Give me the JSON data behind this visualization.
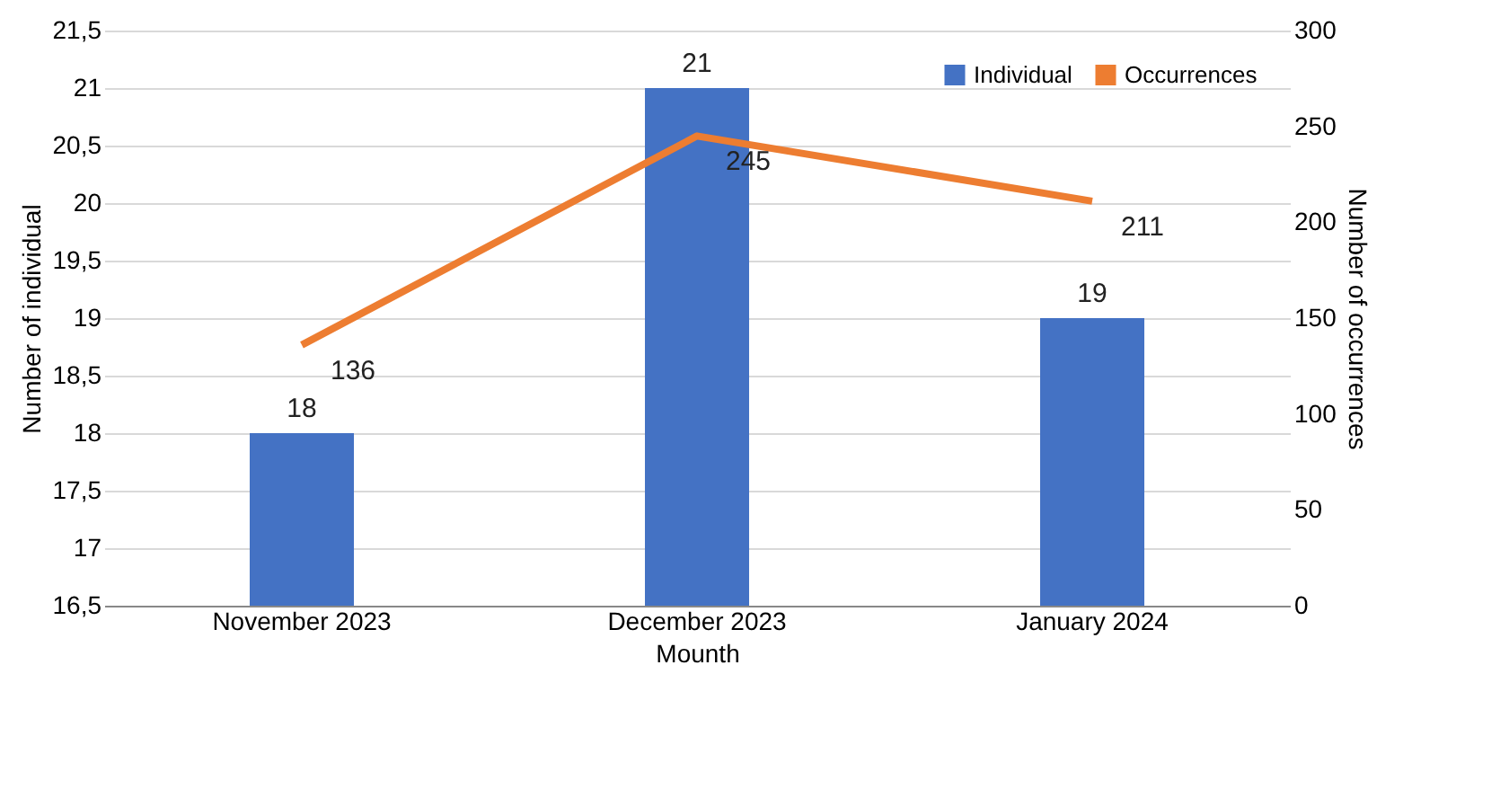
{
  "chart_data": {
    "type": "bar",
    "xlabel": "Mounth",
    "ylabel": "Number of individual",
    "y2label": "Number of occurrences",
    "categories": [
      "November 2023",
      "December 2023",
      "January 2024"
    ],
    "series": [
      {
        "name": "Individual",
        "color": "#4472c4",
        "values": [
          18,
          21,
          19
        ]
      },
      {
        "name": "Occurrences",
        "type": "line",
        "axis": "y2",
        "color": "#ed7d31",
        "values": [
          136,
          245,
          211
        ]
      }
    ],
    "ylim": [
      16.5,
      21.5
    ],
    "yticks": [
      {
        "value": 16.5,
        "label": "16,5"
      },
      17,
      {
        "value": 17.5,
        "label": "17,5"
      },
      18,
      {
        "value": 18.5,
        "label": "18,5"
      },
      19,
      {
        "value": 19.5,
        "label": "19,5"
      },
      20,
      {
        "value": 20.5,
        "label": "20,5"
      },
      21,
      {
        "value": 21.5,
        "label": "21,5"
      }
    ],
    "y2lim": [
      0,
      300
    ],
    "y2ticks": [
      0,
      50,
      100,
      150,
      200,
      250,
      300
    ],
    "grid": "y",
    "legend": "top right",
    "data_labels": true
  }
}
